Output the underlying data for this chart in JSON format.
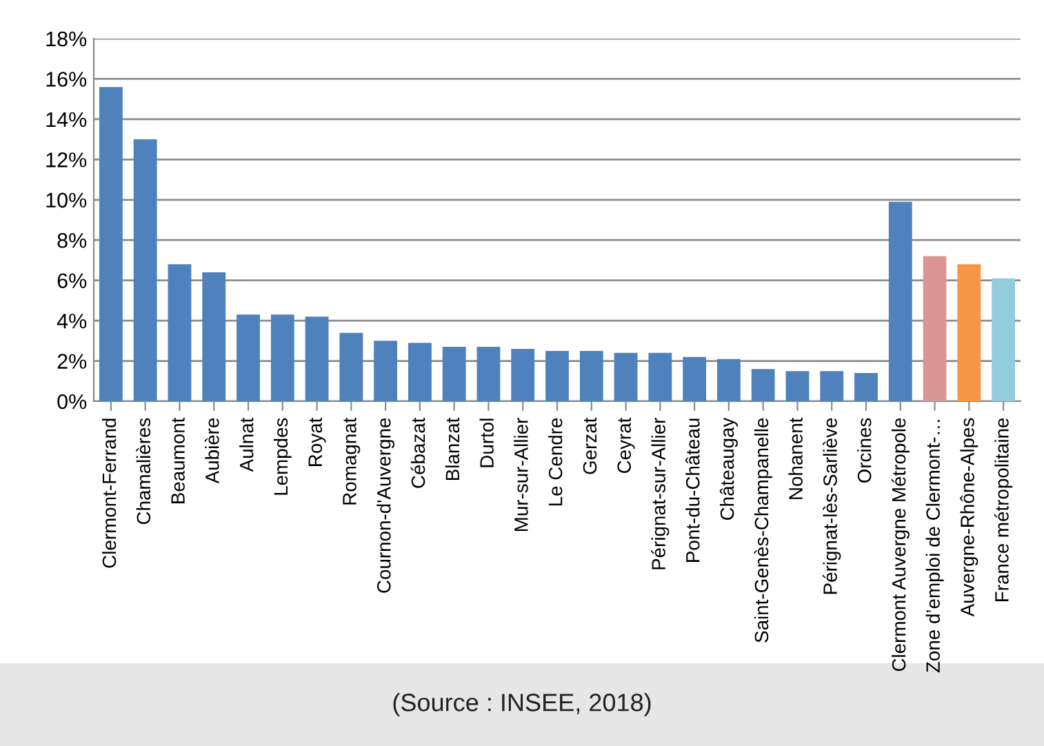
{
  "chart_data": {
    "type": "bar",
    "categories": [
      "Clermont-Ferrand",
      "Chamalières",
      "Beaumont",
      "Aubière",
      "Aulnat",
      "Lempdes",
      "Royat",
      "Romagnat",
      "Cournon-d'Auvergne",
      "Cébazat",
      "Blanzat",
      "Durtol",
      "Mur-sur-Allier",
      "Le Cendre",
      "Gerzat",
      "Ceyrat",
      "Pérignat-sur-Allier",
      "Pont-du-Château",
      "Châteaugay",
      "Saint-Genès-Champanelle",
      "Nohanent",
      "Pérignat-lès-Sarliève",
      "Orcines",
      "Clermont Auvergne Métropole",
      "Zone d’emploi de Clermont-…",
      "Auvergne-Rhône-Alpes",
      "France métropolitaine"
    ],
    "values": [
      15.6,
      13.0,
      6.8,
      6.4,
      4.3,
      4.3,
      4.2,
      3.4,
      3.0,
      2.9,
      2.7,
      2.7,
      2.6,
      2.5,
      2.5,
      2.4,
      2.4,
      2.2,
      2.1,
      1.6,
      1.5,
      1.5,
      1.4,
      9.9,
      7.2,
      6.8,
      6.1
    ],
    "colors": [
      "#4f81bd",
      "#4f81bd",
      "#4f81bd",
      "#4f81bd",
      "#4f81bd",
      "#4f81bd",
      "#4f81bd",
      "#4f81bd",
      "#4f81bd",
      "#4f81bd",
      "#4f81bd",
      "#4f81bd",
      "#4f81bd",
      "#4f81bd",
      "#4f81bd",
      "#4f81bd",
      "#4f81bd",
      "#4f81bd",
      "#4f81bd",
      "#4f81bd",
      "#4f81bd",
      "#4f81bd",
      "#4f81bd",
      "#4f81bd",
      "#d99694",
      "#f79646",
      "#93cddd"
    ],
    "ylim": [
      0,
      18
    ],
    "yticks": [
      {
        "value": 0,
        "label": "0%"
      },
      {
        "value": 2,
        "label": "2%"
      },
      {
        "value": 4,
        "label": "4%"
      },
      {
        "value": 6,
        "label": "6%"
      },
      {
        "value": 8,
        "label": "8%"
      },
      {
        "value": 10,
        "label": "10%"
      },
      {
        "value": 12,
        "label": "12%"
      },
      {
        "value": 14,
        "label": "14%"
      },
      {
        "value": 16,
        "label": "16%"
      },
      {
        "value": 18,
        "label": "18%"
      }
    ],
    "grid": "y",
    "annotations": [
      "(Source : INSEE, 2018)"
    ]
  }
}
